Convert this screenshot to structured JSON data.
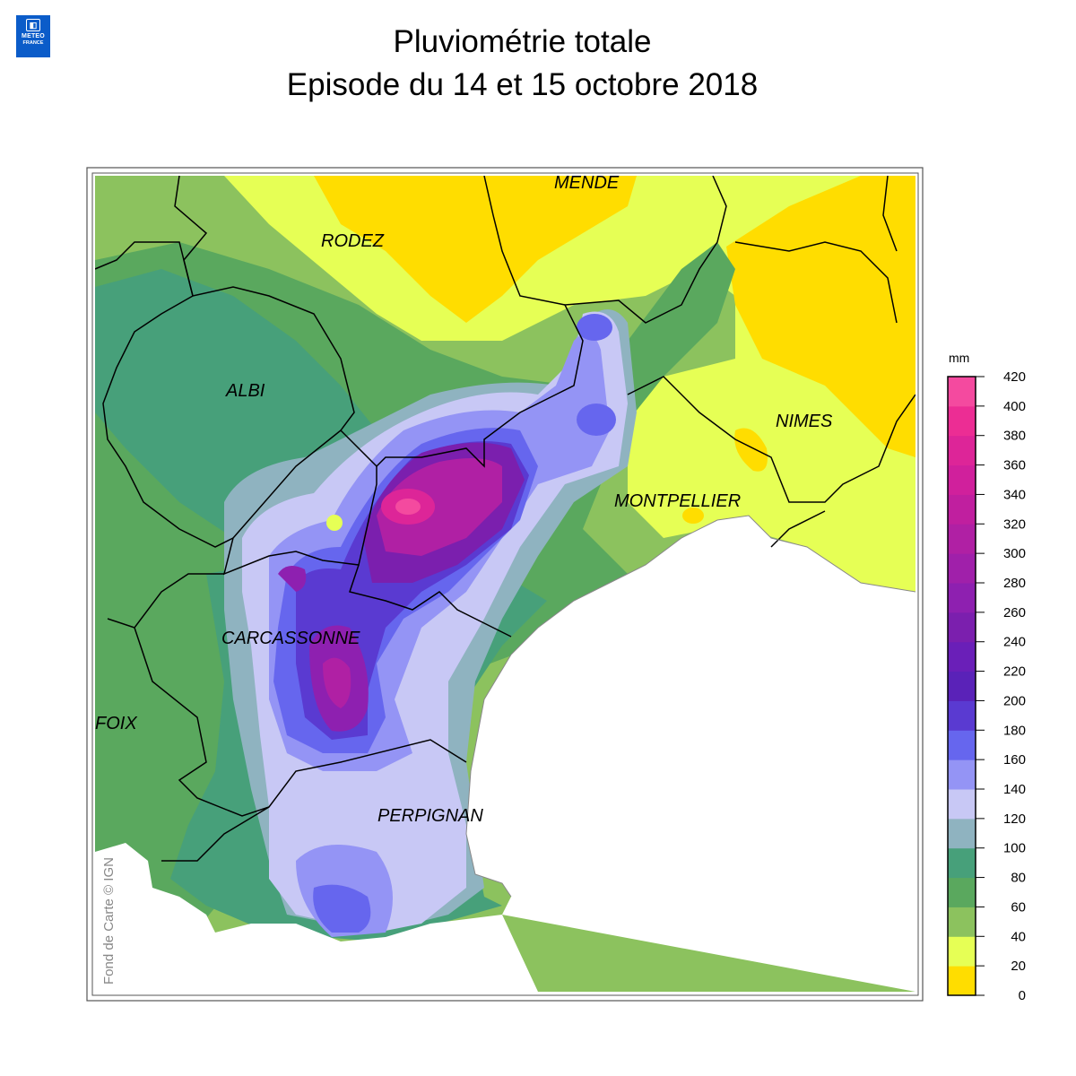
{
  "logo": {
    "line1": "METEO",
    "line2": "FRANCE"
  },
  "title": {
    "line1": "Pluviométrie totale",
    "line2": "Episode du 14 et 15 octobre 2018"
  },
  "cities": [
    {
      "name": "MENDE"
    },
    {
      "name": "RODEZ"
    },
    {
      "name": "ALBI"
    },
    {
      "name": "NIMES"
    },
    {
      "name": "MONTPELLIER"
    },
    {
      "name": "CARCASSONNE"
    },
    {
      "name": "FOIX"
    },
    {
      "name": "PERPIGNAN"
    }
  ],
  "credit": "Fond de Carte © IGN",
  "legend": {
    "unit": "mm",
    "colors": [
      "#ffdd00",
      "#e6ff55",
      "#8cc25e",
      "#5aa85e",
      "#47a07a",
      "#8fb3c0",
      "#c8c8f5",
      "#9494f5",
      "#6666ee",
      "#5a3ad1",
      "#5a22b8",
      "#6a1fb8",
      "#7b1fae",
      "#8e20b0",
      "#a020aa",
      "#b020a4",
      "#c01f9f",
      "#d0209c",
      "#dd2598",
      "#ec2d94",
      "#f44a9f"
    ],
    "ticks": [
      0,
      20,
      40,
      60,
      80,
      100,
      120,
      140,
      160,
      180,
      200,
      220,
      240,
      260,
      280,
      300,
      320,
      340,
      360,
      380,
      400,
      420
    ]
  }
}
